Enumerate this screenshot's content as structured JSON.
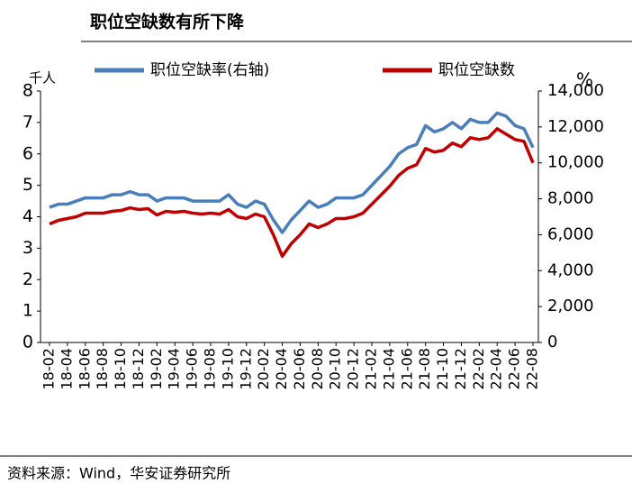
{
  "chart_data": {
    "type": "line",
    "title": "职位空缺数有所下降",
    "ylabel": "千人",
    "y2label": "%",
    "source": "资料来源：Wind，华安证券研究所",
    "categories": [
      "18-02",
      null,
      "18-04",
      null,
      "18-06",
      null,
      "18-08",
      null,
      "18-10",
      null,
      "18-12",
      null,
      "19-02",
      null,
      "19-04",
      null,
      "19-06",
      null,
      "19-08",
      null,
      "19-10",
      null,
      "19-12",
      null,
      "20-02",
      null,
      "20-04",
      null,
      "20-06",
      null,
      "20-08",
      null,
      "20-10",
      null,
      "20-12",
      null,
      "21-02",
      null,
      "21-04",
      null,
      "21-06",
      null,
      "21-08",
      null,
      "21-10",
      null,
      "21-12",
      null,
      "22-02",
      null,
      "22-04",
      null,
      "22-06",
      null,
      "22-08"
    ],
    "series": [
      {
        "name": "职位空缺率(右轴)",
        "color": "#4a7ebb",
        "values": [
          4.3,
          4.4,
          4.4,
          4.5,
          4.6,
          4.6,
          4.6,
          4.7,
          4.7,
          4.8,
          4.7,
          4.7,
          4.5,
          4.6,
          4.6,
          4.6,
          4.5,
          4.5,
          4.5,
          4.5,
          4.7,
          4.4,
          4.3,
          4.5,
          4.4,
          3.9,
          3.5,
          3.9,
          4.2,
          4.5,
          4.3,
          4.4,
          4.6,
          4.6,
          4.6,
          4.7,
          5.0,
          5.3,
          5.6,
          6.0,
          6.2,
          6.3,
          6.9,
          6.7,
          6.8,
          7.0,
          6.8,
          7.1,
          7.0,
          7.0,
          7.3,
          7.2,
          6.9,
          6.8,
          6.2
        ]
      },
      {
        "name": "职位空缺数",
        "color": "#c00000",
        "axis": "y2",
        "values": [
          6600,
          6800,
          6900,
          7000,
          7200,
          7200,
          7200,
          7300,
          7350,
          7500,
          7400,
          7450,
          7100,
          7300,
          7250,
          7300,
          7200,
          7150,
          7200,
          7150,
          7400,
          7000,
          6900,
          7150,
          7000,
          6000,
          4800,
          5500,
          6000,
          6600,
          6400,
          6600,
          6900,
          6900,
          7000,
          7200,
          7700,
          8200,
          8700,
          9300,
          9700,
          9900,
          10800,
          10600,
          10700,
          11100,
          10900,
          11400,
          11300,
          11400,
          11900,
          11600,
          11300,
          11200,
          10000
        ]
      }
    ],
    "ylim": [
      0,
      8
    ],
    "yticks": [
      0,
      1,
      2,
      3,
      4,
      5,
      6,
      7,
      8
    ],
    "y2lim": [
      0,
      14000
    ],
    "y2ticks": [
      0,
      {
        "value": 2000,
        "label": "2,000"
      },
      {
        "value": 4000,
        "label": "4,000"
      },
      {
        "value": 6000,
        "label": "6,000"
      },
      {
        "value": 8000,
        "label": "8,000"
      },
      {
        "value": 10000,
        "label": "10,000"
      },
      {
        "value": 12000,
        "label": "12,000"
      },
      {
        "value": 14000,
        "label": "14,000"
      }
    ]
  }
}
